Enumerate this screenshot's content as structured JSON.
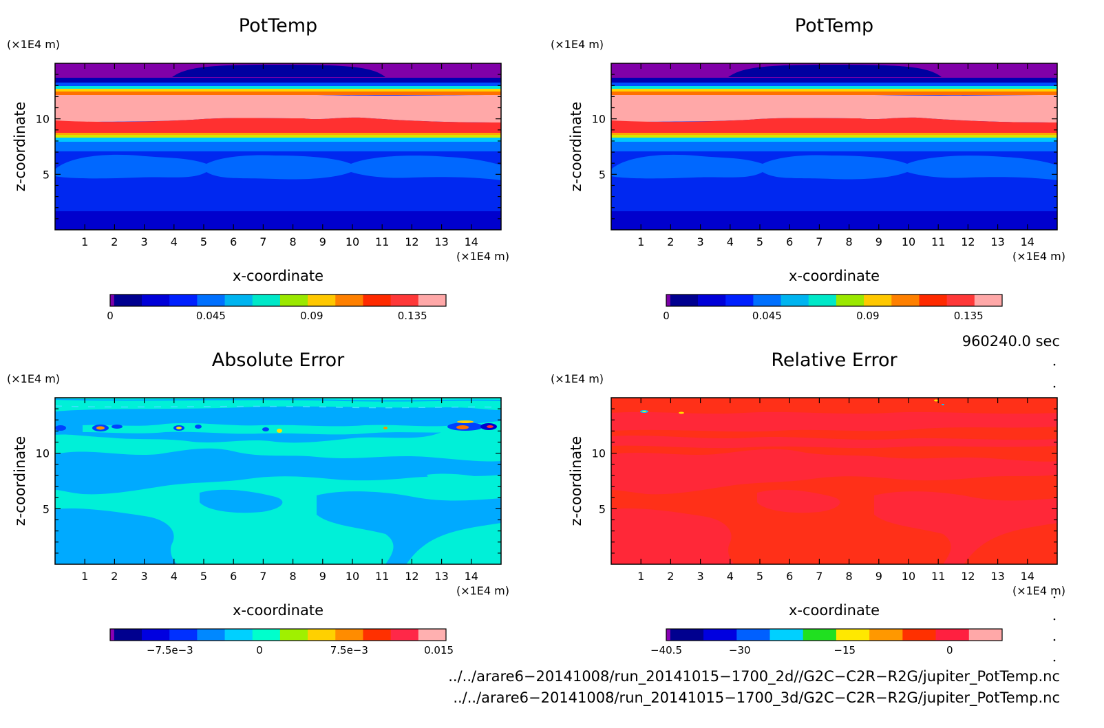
{
  "chart_data": [
    {
      "type": "heatmap",
      "title": "PotTemp",
      "xlabel": "x-coordinate",
      "ylabel": "z-coordinate",
      "x_unit": "(×1E4 m)",
      "y_unit": "(×1E4 m)",
      "xlim": [
        0,
        15
      ],
      "ylim": [
        0,
        15
      ],
      "x_ticks": [
        "1",
        "2",
        "3",
        "4",
        "5",
        "6",
        "7",
        "8",
        "9",
        "10",
        "11",
        "12",
        "13",
        "14"
      ],
      "y_ticks": [
        "5",
        "10"
      ],
      "field_profile": [
        {
          "z": 0.5,
          "value": 0.01
        },
        {
          "z": 2.5,
          "value": 0.025
        },
        {
          "z": 5.5,
          "value": 0.04
        },
        {
          "z": 7.5,
          "value": 0.07
        },
        {
          "z": 9.5,
          "value": 0.13
        },
        {
          "z": 11.5,
          "value": 0.15
        },
        {
          "z": 13.0,
          "value": 0.05
        },
        {
          "z": 14.5,
          "value": 0.005
        }
      ],
      "colorbar": {
        "colors": [
          "#7b00a8",
          "#00008f",
          "#0000d8",
          "#0020ff",
          "#0070ff",
          "#00b4f0",
          "#00e8c8",
          "#9ae800",
          "#ffc800",
          "#ff8000",
          "#ff2a00",
          "#ff3838",
          "#ffa8a8"
        ],
        "tick_labels": [
          "0",
          "0.045",
          "0.09",
          "0.135"
        ],
        "tick_values": [
          0,
          0.045,
          0.09,
          0.135
        ],
        "range": [
          0,
          0.15
        ]
      }
    },
    {
      "type": "heatmap",
      "title": "PotTemp",
      "xlabel": "x-coordinate",
      "ylabel": "z-coordinate",
      "x_unit": "(×1E4 m)",
      "y_unit": "(×1E4 m)",
      "xlim": [
        0,
        15
      ],
      "ylim": [
        0,
        15
      ],
      "x_ticks": [
        "1",
        "2",
        "3",
        "4",
        "5",
        "6",
        "7",
        "8",
        "9",
        "10",
        "11",
        "12",
        "13",
        "14"
      ],
      "y_ticks": [
        "5",
        "10"
      ],
      "colorbar": {
        "colors": [
          "#7b00a8",
          "#00008f",
          "#0000d8",
          "#0020ff",
          "#0070ff",
          "#00b4f0",
          "#00e8c8",
          "#9ae800",
          "#ffc800",
          "#ff8000",
          "#ff2a00",
          "#ff3838",
          "#ffa8a8"
        ],
        "tick_labels": [
          "0",
          "0.045",
          "0.09",
          "0.135"
        ],
        "tick_values": [
          0,
          0.045,
          0.09,
          0.135
        ],
        "range": [
          0,
          0.15
        ]
      }
    },
    {
      "type": "heatmap",
      "title": "Absolute Error",
      "xlabel": "x-coordinate",
      "ylabel": "z-coordinate",
      "x_unit": "(×1E4 m)",
      "y_unit": "(×1E4 m)",
      "xlim": [
        0,
        15
      ],
      "ylim": [
        0,
        15
      ],
      "x_ticks": [
        "1",
        "2",
        "3",
        "4",
        "5",
        "6",
        "7",
        "8",
        "9",
        "10",
        "11",
        "12",
        "13",
        "14"
      ],
      "y_ticks": [
        "5",
        "10"
      ],
      "colorbar": {
        "colors": [
          "#8a00b4",
          "#00008f",
          "#0000e0",
          "#0030ff",
          "#0088ff",
          "#00d0ff",
          "#00ffcc",
          "#a0f000",
          "#ffd000",
          "#ff8c00",
          "#ff3000",
          "#ff2848",
          "#ffb0b0"
        ],
        "tick_labels": [
          "−7.5e−3",
          "0",
          "7.5e−3",
          "0.015"
        ],
        "tick_values": [
          -0.0075,
          0,
          0.0075,
          0.015
        ],
        "range": [
          -0.0125,
          0.0156
        ]
      }
    },
    {
      "type": "heatmap",
      "title": "Relative Error",
      "xlabel": "x-coordinate",
      "ylabel": "z-coordinate",
      "x_unit": "(×1E4 m)",
      "y_unit": "(×1E4 m)",
      "xlim": [
        0,
        15
      ],
      "ylim": [
        0,
        15
      ],
      "x_ticks": [
        "1",
        "2",
        "3",
        "4",
        "5",
        "6",
        "7",
        "8",
        "9",
        "10",
        "11",
        "12",
        "13",
        "14"
      ],
      "y_ticks": [
        "5",
        "10"
      ],
      "colorbar": {
        "colors": [
          "#8a00b4",
          "#00008f",
          "#0000e0",
          "#0060ff",
          "#00d0ff",
          "#20e020",
          "#ffe800",
          "#ff9800",
          "#ff3000",
          "#ff2040",
          "#ffa8a8"
        ],
        "tick_labels": [
          "−40.5",
          "−30",
          "−15",
          "0"
        ],
        "tick_values": [
          -40.5,
          -30,
          -15,
          0
        ],
        "range": [
          -40.5,
          7.5
        ]
      }
    }
  ],
  "time_label": "960240.0 sec",
  "file_paths": [
    "../../arare6−20141008/run_20141015−1700_2d//G2C−C2R−R2G/jupiter_PotTemp.nc",
    "../../arare6−20141008/run_20141015−1700_3d/G2C−C2R−R2G/jupiter_PotTemp.nc"
  ]
}
